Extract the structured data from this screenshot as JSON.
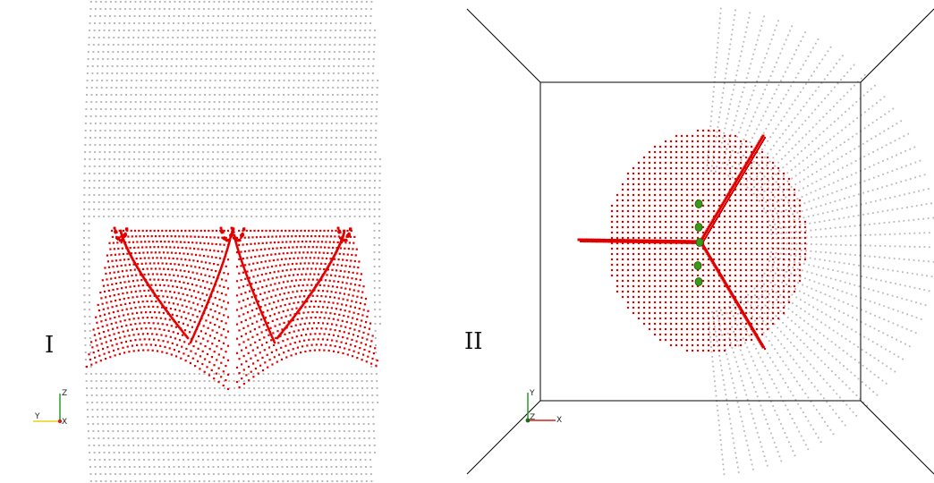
{
  "panels": [
    {
      "label": "I",
      "axes": {
        "vertical": "Z",
        "horizontal": "Y",
        "out": "X"
      }
    },
    {
      "label": "II",
      "axes": {
        "vertical": "Y",
        "horizontal": "X",
        "out": "Z"
      }
    }
  ],
  "colors": {
    "background": "#ffffff",
    "grid_points": "#b9b9b9",
    "surface_points": "#e00000",
    "markers": "#3a9a1a",
    "box_edges": "#000000",
    "axis_z": "#2a9a2a",
    "axis_y": "#e6d21a",
    "axis_x": "#d42020"
  }
}
